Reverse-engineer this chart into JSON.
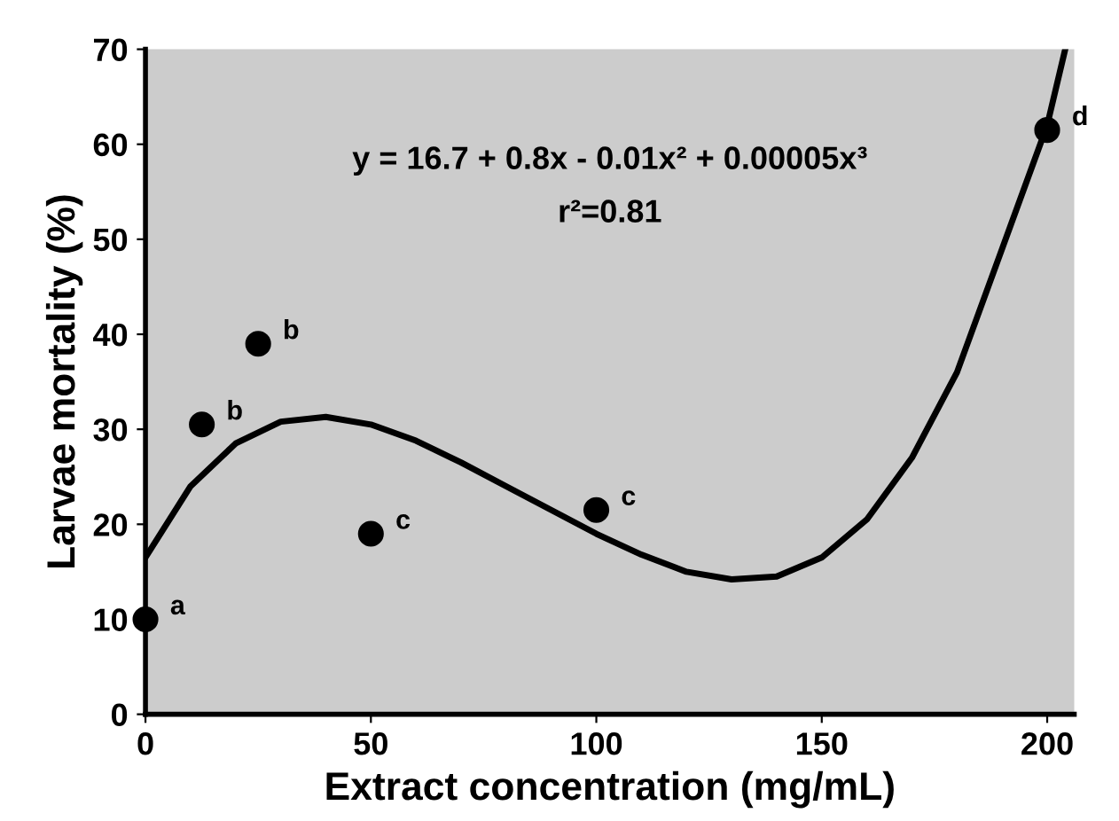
{
  "chart_data": {
    "type": "scatter",
    "xlabel": "Extract concentration (mg/mL)",
    "ylabel": "Larvae mortality (%)",
    "x": [
      0,
      12.5,
      25,
      50,
      100,
      200
    ],
    "series": [
      {
        "color": "#000000",
        "marker": "circle",
        "values": [
          10,
          30.5,
          39,
          19,
          21.5,
          61.5
        ]
      },
      {
        "type": "line",
        "color": "#000000",
        "marker": "none",
        "line_style": "solid",
        "x": [
          0,
          10,
          20,
          30,
          40,
          50,
          60,
          70,
          80,
          90,
          100,
          110,
          120,
          130,
          140,
          150,
          160,
          170,
          180,
          190,
          200,
          204
        ],
        "values": [
          16.5,
          24,
          28.5,
          30.8,
          31.3,
          30.5,
          28.8,
          26.5,
          24,
          21.5,
          19,
          16.8,
          15,
          14.2,
          14.5,
          16.5,
          20.5,
          27,
          36,
          49,
          62,
          70
        ]
      }
    ],
    "annotations": [
      {
        "text": "a",
        "x": 0,
        "y": 10
      },
      {
        "text": "b",
        "x": 12.5,
        "y": 30.5
      },
      {
        "text": "b",
        "x": 25,
        "y": 39
      },
      {
        "text": "c",
        "x": 50,
        "y": 19
      },
      {
        "text": "c",
        "x": 100,
        "y": 21.5
      },
      {
        "text": "d",
        "x": 200,
        "y": 61.5
      },
      "y = 16.7 + 0.8x - 0.01x² + 0.00005x³",
      "r²=0.81"
    ],
    "xlim": [
      0,
      206
    ],
    "ylim": [
      0,
      70
    ],
    "xticks": [
      0,
      50,
      100,
      150,
      200
    ],
    "yticks": [
      0,
      10,
      20,
      30,
      40,
      50,
      60,
      70
    ],
    "grid": false,
    "legend": false
  }
}
